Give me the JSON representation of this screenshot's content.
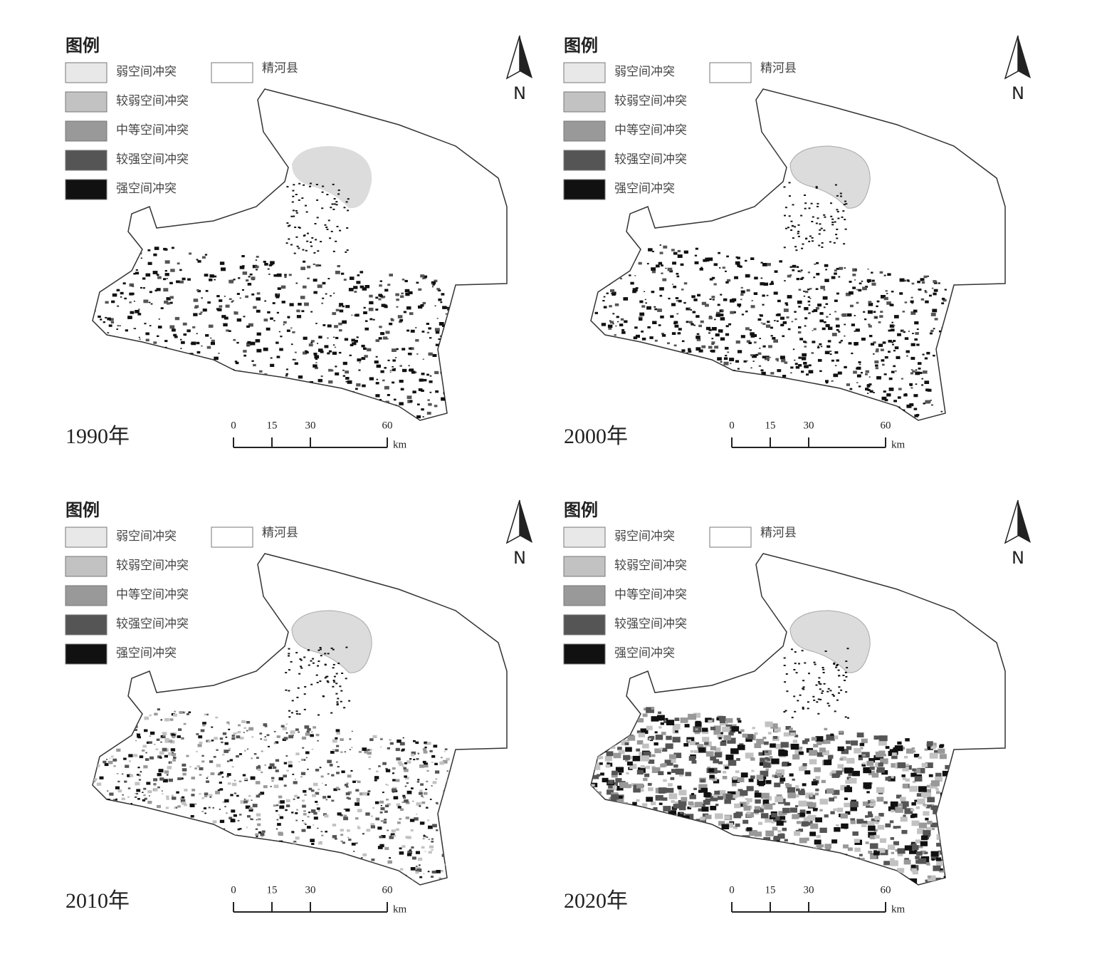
{
  "panels": [
    {
      "legend": {
        "title": "图例",
        "items": [
          "弱空间冲突",
          "较弱空间冲突",
          "中等空间冲突",
          "较强空间冲突",
          "强空间冲突"
        ],
        "boundary": "精河县"
      },
      "north": "N",
      "scale": {
        "ticks": [
          0,
          15,
          30,
          60
        ],
        "unit": "km"
      },
      "year": "1990年"
    },
    {
      "legend": {
        "title": "图例",
        "items": [
          "弱空间冲突",
          "较弱空间冲突",
          "中等空间冲突",
          "较强空间冲突",
          "强空间冲突"
        ],
        "boundary": "精河县"
      },
      "north": "N",
      "scale": {
        "ticks": [
          0,
          15,
          30,
          60
        ],
        "unit": "km"
      },
      "year": "2000年"
    },
    {
      "legend": {
        "title": "图例",
        "items": [
          "弱空间冲突",
          "较弱空间冲突",
          "中等空间冲突",
          "较强空间冲突",
          "强空间冲突"
        ],
        "boundary": "精河县"
      },
      "north": "N",
      "scale": {
        "ticks": [
          0,
          15,
          30,
          60
        ],
        "unit": "km"
      },
      "year": "2010年"
    },
    {
      "legend": {
        "title": "图例",
        "items": [
          "弱空间冲突",
          "较弱空间冲突",
          "中等空间冲突",
          "较强空间冲突",
          "强空间冲突"
        ],
        "boundary": "精河县"
      },
      "north": "N",
      "scale": {
        "ticks": [
          0,
          15,
          30,
          60
        ],
        "unit": "km"
      },
      "year": "2020年"
    }
  ]
}
